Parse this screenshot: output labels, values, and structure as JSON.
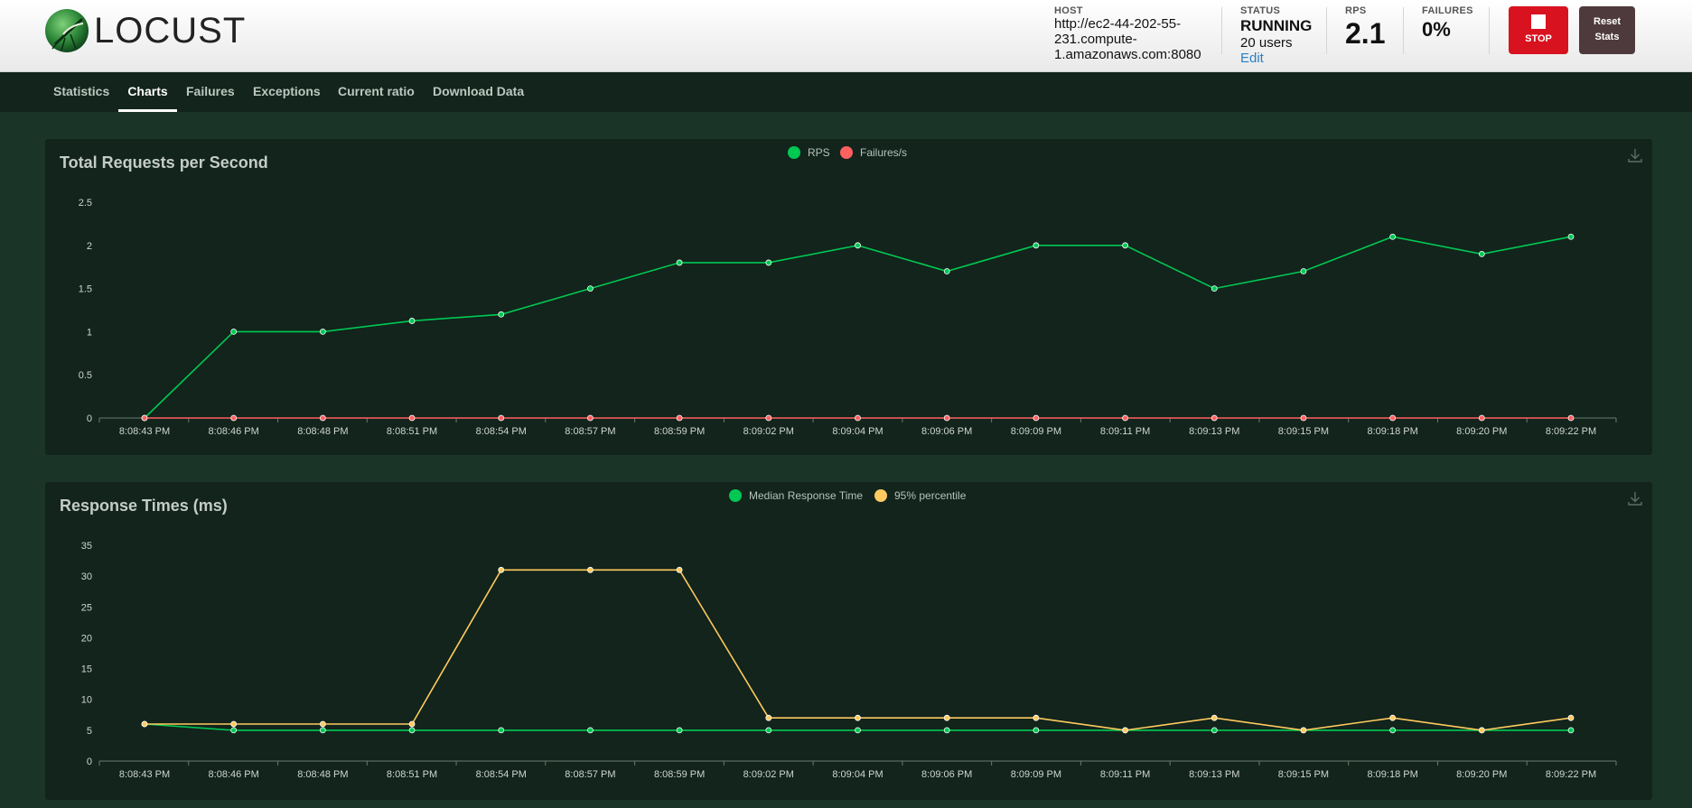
{
  "app": {
    "logo_text": "LOCUST",
    "host_label": "HOST",
    "host_value": "http://ec2-44-202-55-231.compute-1.amazonaws.com:8080",
    "status_label": "STATUS",
    "status_value": "RUNNING",
    "users_value": "20 users",
    "edit_label": "Edit",
    "rps_label": "RPS",
    "rps_value": "2.1",
    "failures_label": "FAILURES",
    "failures_value": "0%",
    "stop_label": "STOP",
    "reset_label_line1": "Reset",
    "reset_label_line2": "Stats"
  },
  "nav": {
    "tabs": [
      "Statistics",
      "Charts",
      "Failures",
      "Exceptions",
      "Current ratio",
      "Download Data"
    ],
    "active": "Charts"
  },
  "colors": {
    "green": "#00c853",
    "red": "#ff6060",
    "yellow": "#ffca5f",
    "header_bg": "#f2f2f2",
    "page_bg": "#1a3428",
    "panel_bg": "#12241b",
    "stop_red": "#d8121f"
  },
  "icons": [
    "locust-logo-icon",
    "stop-icon",
    "download-icon"
  ],
  "chart_data": [
    {
      "type": "line",
      "title": "Total Requests per Second",
      "categories": [
        "8:08:43 PM",
        "8:08:46 PM",
        "8:08:48 PM",
        "8:08:51 PM",
        "8:08:54 PM",
        "8:08:57 PM",
        "8:08:59 PM",
        "8:09:02 PM",
        "8:09:04 PM",
        "8:09:06 PM",
        "8:09:09 PM",
        "8:09:11 PM",
        "8:09:13 PM",
        "8:09:15 PM",
        "8:09:18 PM",
        "8:09:20 PM",
        "8:09:22 PM"
      ],
      "series": [
        {
          "name": "RPS",
          "color": "#00c853",
          "values": [
            0,
            1,
            1,
            1.125,
            1.2,
            1.5,
            1.8,
            1.8,
            2,
            1.7,
            2,
            2,
            1.5,
            1.7,
            2.1,
            1.9,
            2.1
          ]
        },
        {
          "name": "Failures/s",
          "color": "#ff6060",
          "values": [
            0,
            0,
            0,
            0,
            0,
            0,
            0,
            0,
            0,
            0,
            0,
            0,
            0,
            0,
            0,
            0,
            0
          ]
        }
      ],
      "ylim": [
        0,
        2.5
      ],
      "yticks": [
        "0",
        "0.5",
        "1",
        "1.5",
        "2",
        "2.5"
      ],
      "legend": "top-center",
      "grid": false
    },
    {
      "type": "line",
      "title": "Response Times (ms)",
      "categories": [
        "8:08:43 PM",
        "8:08:46 PM",
        "8:08:48 PM",
        "8:08:51 PM",
        "8:08:54 PM",
        "8:08:57 PM",
        "8:08:59 PM",
        "8:09:02 PM",
        "8:09:04 PM",
        "8:09:06 PM",
        "8:09:09 PM",
        "8:09:11 PM",
        "8:09:13 PM",
        "8:09:15 PM",
        "8:09:18 PM",
        "8:09:20 PM",
        "8:09:22 PM"
      ],
      "series": [
        {
          "name": "Median Response Time",
          "color": "#00c853",
          "values": [
            6,
            5,
            5,
            5,
            5,
            5,
            5,
            5,
            5,
            5,
            5,
            5,
            5,
            5,
            5,
            5,
            5
          ]
        },
        {
          "name": "95% percentile",
          "color": "#ffca5f",
          "values": [
            6,
            6,
            6,
            6,
            31,
            31,
            31,
            7,
            7,
            7,
            7,
            5,
            7,
            5,
            7,
            5,
            7
          ]
        }
      ],
      "ylim": [
        0,
        35
      ],
      "yticks": [
        "0",
        "5",
        "10",
        "15",
        "20",
        "25",
        "30",
        "35"
      ],
      "legend": "top-center",
      "grid": false
    }
  ]
}
